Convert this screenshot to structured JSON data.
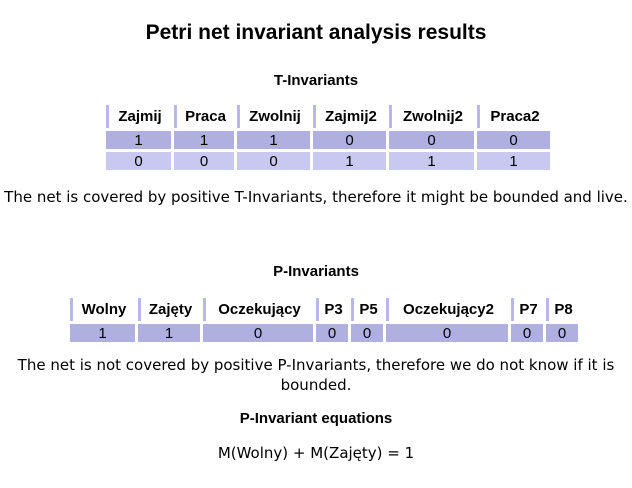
{
  "title": "Petri net invariant analysis results",
  "t_invariants": {
    "heading": "T-Invariants",
    "columns": [
      "Zajmij",
      "Praca",
      "Zwolnij",
      "Zajmij2",
      "Zwolnij2",
      "Praca2"
    ],
    "rows": [
      [
        "1",
        "1",
        "1",
        "0",
        "0",
        "0"
      ],
      [
        "0",
        "0",
        "0",
        "1",
        "1",
        "1"
      ]
    ],
    "note": "The net is covered by positive T-Invariants, therefore it might be bounded and live."
  },
  "p_invariants": {
    "heading": "P-Invariants",
    "columns": [
      "Wolny",
      "Zajęty",
      "Oczekujący",
      "P3",
      "P5",
      "Oczekujący2",
      "P7",
      "P8"
    ],
    "rows": [
      [
        "1",
        "1",
        "0",
        "0",
        "0",
        "0",
        "0",
        "0"
      ]
    ],
    "note": "The net is not covered by positive P-Invariants, therefore we do not know if it is bounded."
  },
  "equations": {
    "heading": "P-Invariant equations",
    "items": [
      "M(Wolny) + M(Zajęty) = 1"
    ]
  }
}
